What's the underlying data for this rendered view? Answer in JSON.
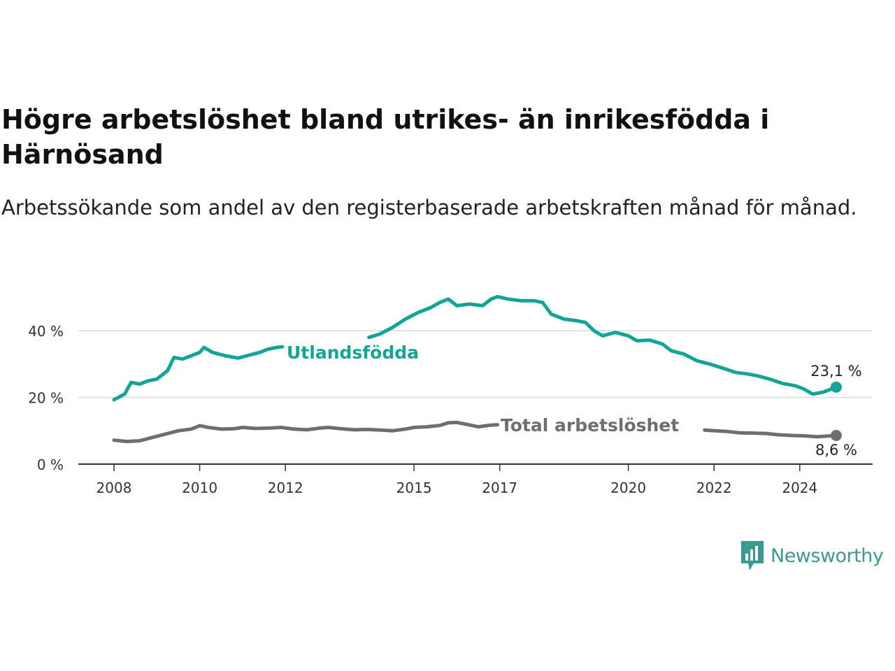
{
  "chart_data": {
    "type": "line",
    "title": "Högre arbetslöshet bland utrikes- än inrikesfödda i Härnösand",
    "subtitle": "Arbetssökande som andel av den registerbaserade arbetskraften månad för månad.",
    "x_ticks": [
      "2008",
      "2010",
      "2012",
      "2015",
      "2017",
      "2020",
      "2022",
      "2024"
    ],
    "y_ticks": [
      "0 %",
      "20 %",
      "40 %"
    ],
    "ylim": [
      0,
      50
    ],
    "grid": true,
    "series": [
      {
        "name": "Utlandsfödda",
        "color": "#12a596",
        "end_label": "23,1 %",
        "points": [
          [
            2008.0,
            19.3
          ],
          [
            2008.25,
            21.0
          ],
          [
            2008.4,
            24.5
          ],
          [
            2008.6,
            24.0
          ],
          [
            2008.8,
            25.0
          ],
          [
            2009.0,
            25.5
          ],
          [
            2009.25,
            28.0
          ],
          [
            2009.4,
            32.0
          ],
          [
            2009.6,
            31.5
          ],
          [
            2009.8,
            32.5
          ],
          [
            2010.0,
            33.5
          ],
          [
            2010.1,
            35.0
          ],
          [
            2010.3,
            33.5
          ],
          [
            2010.6,
            32.5
          ],
          [
            2010.9,
            31.8
          ],
          [
            2011.1,
            32.5
          ],
          [
            2011.4,
            33.5
          ],
          [
            2011.6,
            34.5
          ],
          [
            2011.8,
            35.0
          ],
          [
            2011.93,
            35.2
          ],
          [
            2013.95,
            38.0
          ],
          [
            2014.2,
            39.0
          ],
          [
            2014.5,
            41.0
          ],
          [
            2014.8,
            43.5
          ],
          [
            2015.1,
            45.5
          ],
          [
            2015.4,
            47.0
          ],
          [
            2015.6,
            48.5
          ],
          [
            2015.8,
            49.5
          ],
          [
            2016.0,
            47.5
          ],
          [
            2016.3,
            48.0
          ],
          [
            2016.6,
            47.5
          ],
          [
            2016.8,
            49.5
          ],
          [
            2016.95,
            50.2
          ],
          [
            2017.2,
            49.5
          ],
          [
            2017.5,
            49.0
          ],
          [
            2017.8,
            49.0
          ],
          [
            2018.0,
            48.5
          ],
          [
            2018.2,
            45.0
          ],
          [
            2018.5,
            43.5
          ],
          [
            2018.8,
            43.0
          ],
          [
            2019.0,
            42.5
          ],
          [
            2019.2,
            40.0
          ],
          [
            2019.4,
            38.5
          ],
          [
            2019.7,
            39.5
          ],
          [
            2020.0,
            38.5
          ],
          [
            2020.2,
            37.0
          ],
          [
            2020.5,
            37.2
          ],
          [
            2020.8,
            36.0
          ],
          [
            2021.0,
            34.0
          ],
          [
            2021.3,
            33.0
          ],
          [
            2021.6,
            31.0
          ],
          [
            2021.9,
            30.0
          ],
          [
            2022.2,
            28.8
          ],
          [
            2022.5,
            27.5
          ],
          [
            2022.8,
            27.0
          ],
          [
            2023.0,
            26.5
          ],
          [
            2023.3,
            25.5
          ],
          [
            2023.6,
            24.2
          ],
          [
            2023.9,
            23.5
          ],
          [
            2024.1,
            22.5
          ],
          [
            2024.3,
            21.0
          ],
          [
            2024.55,
            21.6
          ],
          [
            2024.85,
            23.1
          ]
        ]
      },
      {
        "name": "Total arbetslöshet",
        "color": "#6e6d72",
        "end_label": "8,6 %",
        "points": [
          [
            2008.0,
            7.2
          ],
          [
            2008.3,
            6.8
          ],
          [
            2008.6,
            7.0
          ],
          [
            2008.9,
            8.0
          ],
          [
            2009.2,
            9.0
          ],
          [
            2009.5,
            10.0
          ],
          [
            2009.8,
            10.5
          ],
          [
            2010.0,
            11.5
          ],
          [
            2010.2,
            11.0
          ],
          [
            2010.5,
            10.5
          ],
          [
            2010.8,
            10.6
          ],
          [
            2011.0,
            11.0
          ],
          [
            2011.3,
            10.7
          ],
          [
            2011.6,
            10.8
          ],
          [
            2011.9,
            11.0
          ],
          [
            2012.2,
            10.5
          ],
          [
            2012.5,
            10.3
          ],
          [
            2012.8,
            10.8
          ],
          [
            2013.0,
            11.0
          ],
          [
            2013.3,
            10.6
          ],
          [
            2013.6,
            10.3
          ],
          [
            2013.9,
            10.4
          ],
          [
            2014.2,
            10.2
          ],
          [
            2014.5,
            10.0
          ],
          [
            2014.8,
            10.5
          ],
          [
            2015.0,
            11.0
          ],
          [
            2015.3,
            11.2
          ],
          [
            2015.6,
            11.6
          ],
          [
            2015.8,
            12.4
          ],
          [
            2016.0,
            12.5
          ],
          [
            2016.2,
            12.0
          ],
          [
            2016.5,
            11.2
          ],
          [
            2016.8,
            11.7
          ],
          [
            2016.95,
            11.8
          ],
          [
            2021.78,
            10.2
          ],
          [
            2022.0,
            10.0
          ],
          [
            2022.3,
            9.8
          ],
          [
            2022.6,
            9.4
          ],
          [
            2022.9,
            9.3
          ],
          [
            2023.2,
            9.2
          ],
          [
            2023.5,
            8.8
          ],
          [
            2023.8,
            8.6
          ],
          [
            2024.1,
            8.5
          ],
          [
            2024.4,
            8.2
          ],
          [
            2024.85,
            8.6
          ]
        ]
      }
    ]
  },
  "brand": {
    "name": "Newsworthy",
    "icon": "newsworthy-logo-icon",
    "color": "#3a9a92"
  }
}
